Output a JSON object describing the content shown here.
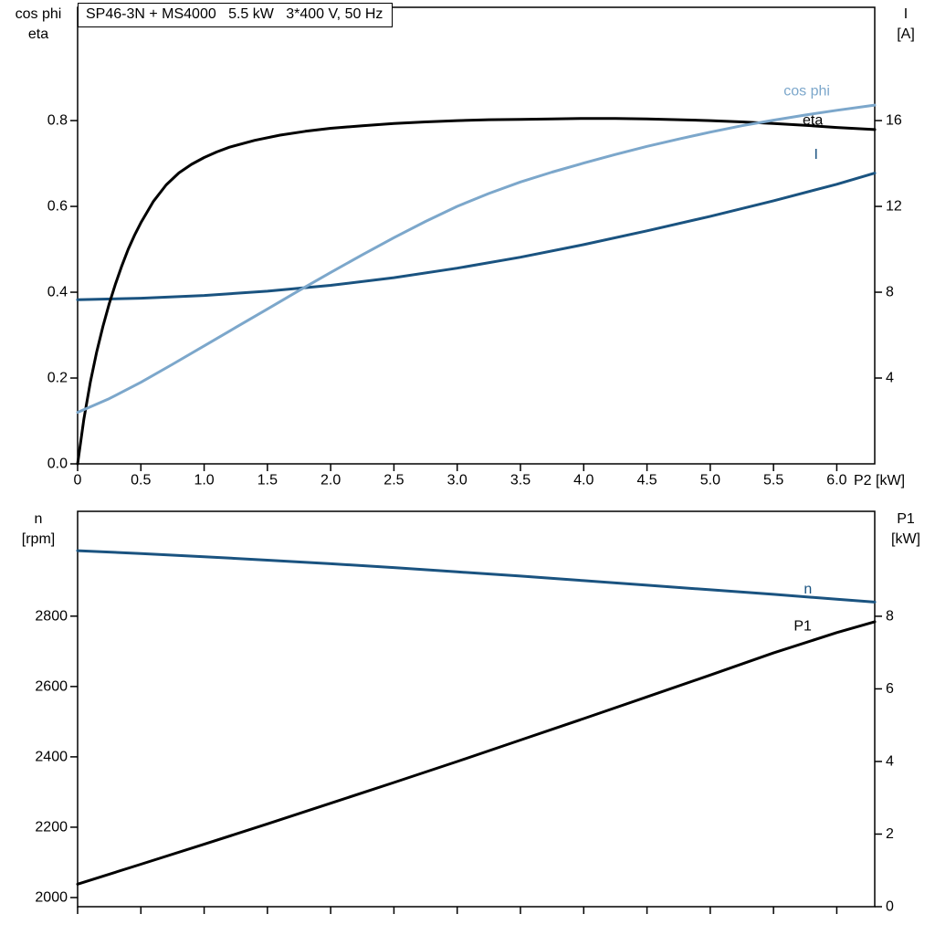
{
  "colors": {
    "curve_black": "#000000",
    "curve_dark_blue": "#1a5380",
    "curve_light_blue": "#7ca7cb",
    "axis": "#000000",
    "background": "#ffffff"
  },
  "chart_data": [
    {
      "type": "line",
      "title": "SP46-3N + MS4000   5.5 kW   3*400 V, 50 Hz",
      "x_axis": {
        "label": "P2 [kW]",
        "range": [
          0,
          6.3
        ],
        "ticks": [
          0,
          0.5,
          1,
          1.5,
          2,
          2.5,
          3,
          3.5,
          4,
          4.5,
          5,
          5.5,
          6
        ],
        "tick_labels": [
          "0",
          "0.5",
          "1.0",
          "1.5",
          "2.0",
          "2.5",
          "3.0",
          "3.5",
          "4.0",
          "4.5",
          "5.0",
          "5.5",
          "6.0"
        ]
      },
      "left_axis": {
        "label_lines": [
          "cos phi",
          "eta"
        ],
        "range": [
          0,
          1.064
        ],
        "ticks": [
          0,
          0.2,
          0.4,
          0.6,
          0.8
        ],
        "tick_labels": [
          "0.0",
          "0.2",
          "0.4",
          "0.6",
          "0.8"
        ]
      },
      "right_axis": {
        "label_lines": [
          "I",
          "[A]"
        ],
        "range": [
          0,
          21.28
        ],
        "ticks": [
          4,
          8,
          12,
          16
        ],
        "tick_labels": [
          "4",
          "8",
          "12",
          "16"
        ]
      },
      "series": [
        {
          "name": "current",
          "label": "I",
          "axis": "right",
          "color": "#1a5380",
          "label_at": [
            5.82,
            14.4
          ],
          "points": [
            [
              0,
              7.65
            ],
            [
              0.5,
              7.72
            ],
            [
              1.0,
              7.85
            ],
            [
              1.5,
              8.05
            ],
            [
              2.0,
              8.32
            ],
            [
              2.5,
              8.68
            ],
            [
              3.0,
              9.12
            ],
            [
              3.5,
              9.63
            ],
            [
              4.0,
              10.22
            ],
            [
              4.5,
              10.86
            ],
            [
              5.0,
              11.54
            ],
            [
              5.5,
              12.26
            ],
            [
              6.0,
              13.03
            ],
            [
              6.3,
              13.55
            ]
          ]
        },
        {
          "name": "eta",
          "label": "eta",
          "axis": "left",
          "color": "#000000",
          "label_at": [
            5.73,
            0.8
          ],
          "points": [
            [
              0,
              0
            ],
            [
              0.05,
              0.105
            ],
            [
              0.1,
              0.19
            ],
            [
              0.15,
              0.26
            ],
            [
              0.2,
              0.32
            ],
            [
              0.25,
              0.373
            ],
            [
              0.3,
              0.42
            ],
            [
              0.35,
              0.462
            ],
            [
              0.4,
              0.5
            ],
            [
              0.45,
              0.533
            ],
            [
              0.5,
              0.562
            ],
            [
              0.6,
              0.612
            ],
            [
              0.7,
              0.65
            ],
            [
              0.8,
              0.678
            ],
            [
              0.9,
              0.698
            ],
            [
              1.0,
              0.714
            ],
            [
              1.1,
              0.727
            ],
            [
              1.2,
              0.738
            ],
            [
              1.4,
              0.754
            ],
            [
              1.6,
              0.766
            ],
            [
              1.8,
              0.775
            ],
            [
              2.0,
              0.782
            ],
            [
              2.25,
              0.788
            ],
            [
              2.5,
              0.793
            ],
            [
              2.75,
              0.797
            ],
            [
              3.0,
              0.8
            ],
            [
              3.25,
              0.802
            ],
            [
              3.5,
              0.803
            ],
            [
              3.75,
              0.804
            ],
            [
              4.0,
              0.805
            ],
            [
              4.25,
              0.805
            ],
            [
              4.5,
              0.804
            ],
            [
              4.75,
              0.802
            ],
            [
              5.0,
              0.8
            ],
            [
              5.25,
              0.797
            ],
            [
              5.5,
              0.793
            ],
            [
              5.75,
              0.789
            ],
            [
              6.0,
              0.784
            ],
            [
              6.3,
              0.779
            ]
          ]
        },
        {
          "name": "cos-phi",
          "label": "cos phi",
          "axis": "left",
          "color": "#7ca7cb",
          "label_at": [
            5.58,
            0.868
          ],
          "points": [
            [
              0,
              0.12
            ],
            [
              0.25,
              0.152
            ],
            [
              0.5,
              0.19
            ],
            [
              0.75,
              0.232
            ],
            [
              1.0,
              0.275
            ],
            [
              1.25,
              0.318
            ],
            [
              1.5,
              0.361
            ],
            [
              1.75,
              0.404
            ],
            [
              2.0,
              0.446
            ],
            [
              2.25,
              0.487
            ],
            [
              2.5,
              0.527
            ],
            [
              2.75,
              0.565
            ],
            [
              3.0,
              0.6
            ],
            [
              3.25,
              0.63
            ],
            [
              3.5,
              0.657
            ],
            [
              3.75,
              0.68
            ],
            [
              4.0,
              0.701
            ],
            [
              4.25,
              0.721
            ],
            [
              4.5,
              0.74
            ],
            [
              4.75,
              0.757
            ],
            [
              5.0,
              0.773
            ],
            [
              5.25,
              0.788
            ],
            [
              5.5,
              0.801
            ],
            [
              5.75,
              0.813
            ],
            [
              6.0,
              0.824
            ],
            [
              6.3,
              0.836
            ]
          ]
        }
      ]
    },
    {
      "type": "line",
      "x_axis": {
        "label": "",
        "range": [
          0,
          6.3
        ],
        "ticks": [
          0,
          0.5,
          1,
          1.5,
          2,
          2.5,
          3,
          3.5,
          4,
          4.5,
          5,
          5.5,
          6
        ],
        "tick_labels": null
      },
      "left_axis": {
        "label_lines": [
          "n",
          "[rpm]"
        ],
        "range": [
          1974,
          3098
        ],
        "ticks": [
          2000,
          2200,
          2400,
          2600,
          2800
        ],
        "tick_labels": [
          "2000",
          "2200",
          "2400",
          "2600",
          "2800"
        ]
      },
      "right_axis": {
        "label_lines": [
          "P1",
          "[kW]"
        ],
        "range": [
          0,
          10.89
        ],
        "ticks": [
          0,
          2,
          4,
          6,
          8
        ],
        "tick_labels": [
          "0",
          "2",
          "4",
          "6",
          "8"
        ]
      },
      "series": [
        {
          "name": "speed",
          "label": "n",
          "axis": "left",
          "color": "#1a5380",
          "label_at": [
            5.74,
            2876
          ],
          "points": [
            [
              0,
              2986
            ],
            [
              0.5,
              2978
            ],
            [
              1.0,
              2969
            ],
            [
              1.5,
              2959
            ],
            [
              2.0,
              2949
            ],
            [
              2.5,
              2938
            ],
            [
              3.0,
              2926
            ],
            [
              3.5,
              2914
            ],
            [
              4.0,
              2901
            ],
            [
              4.5,
              2888
            ],
            [
              5.0,
              2875
            ],
            [
              5.5,
              2862
            ],
            [
              6.0,
              2848
            ],
            [
              6.3,
              2840
            ]
          ]
        },
        {
          "name": "p1",
          "label": "P1",
          "axis": "right",
          "color": "#000000",
          "label_at": [
            5.66,
            7.72
          ],
          "points": [
            [
              0,
              0.62
            ],
            [
              0.5,
              1.17
            ],
            [
              1.0,
              1.72
            ],
            [
              1.5,
              2.28
            ],
            [
              2.0,
              2.85
            ],
            [
              2.5,
              3.42
            ],
            [
              3.0,
              4.0
            ],
            [
              3.5,
              4.59
            ],
            [
              4.0,
              5.18
            ],
            [
              4.5,
              5.78
            ],
            [
              5.0,
              6.38
            ],
            [
              5.5,
              6.99
            ],
            [
              6.0,
              7.55
            ],
            [
              6.3,
              7.85
            ]
          ]
        }
      ]
    }
  ]
}
